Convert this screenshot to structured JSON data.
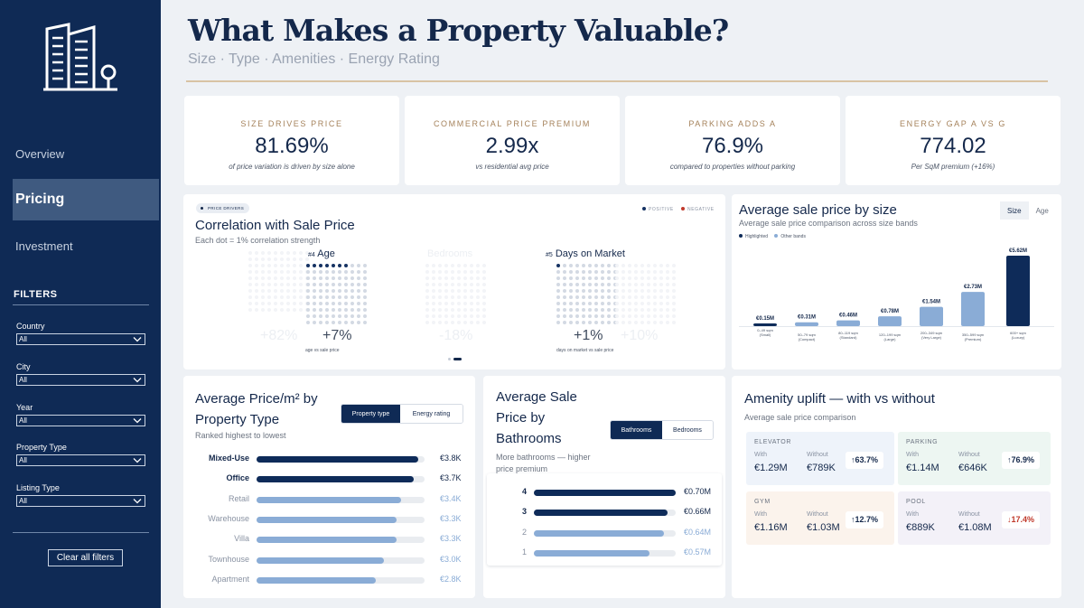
{
  "sidebar": {
    "nav": [
      "Overview",
      "Pricing",
      "Investment"
    ],
    "active": "Pricing",
    "filters_title": "FILTERS",
    "filters": [
      {
        "label": "Country",
        "value": "All"
      },
      {
        "label": "City",
        "value": "All"
      },
      {
        "label": "Year",
        "value": "All"
      },
      {
        "label": "Property Type",
        "value": "All"
      },
      {
        "label": "Listing Type",
        "value": "All"
      }
    ],
    "clear_label": "Clear all filters"
  },
  "header": {
    "title": "What Makes a Property Valuable?",
    "subtitle": "Size · Type · Amenities · Energy Rating"
  },
  "kpis": [
    {
      "label": "SIZE DRIVES PRICE",
      "value": "81.69%",
      "caption": "of price variation is driven by size alone"
    },
    {
      "label": "COMMERCIAL PRICE PREMIUM",
      "value": "2.99x",
      "caption": "vs residential avg price"
    },
    {
      "label": "PARKING ADDS A",
      "value": "76.9%",
      "caption": "compared to properties without parking"
    },
    {
      "label": "ENERGY GAP A VS G",
      "value": "774.02",
      "caption": "Per SqM premium (+16%)"
    }
  ],
  "correlation": {
    "badge": "PRICE DRIVERS",
    "title": "Correlation with Sale Price",
    "subtitle": "Each dot = 1% correlation strength",
    "legend_positive": "POSITIVE",
    "legend_negative": "NEGATIVE",
    "colors": {
      "positive": "#153262",
      "negative": "#c0392b"
    },
    "items": [
      {
        "rank": "",
        "name": "",
        "value": "+82%",
        "caption": "",
        "dots": 82,
        "faint": true
      },
      {
        "rank": "#4",
        "name": "Age",
        "value": "+7%",
        "caption": "age vs sale price",
        "dots": 7,
        "faint": false
      },
      {
        "rank": "",
        "name": "Bedrooms",
        "value": "-18%",
        "caption": "",
        "dots": 18,
        "faint": true
      },
      {
        "rank": "#5",
        "name": "Days on Market",
        "value": "+1%",
        "caption": "days on market vs sale price",
        "dots": 1,
        "faint": false
      },
      {
        "rank": "",
        "name": "",
        "value": "+10%",
        "caption": "",
        "dots": 10,
        "faint": true
      }
    ]
  },
  "size_card": {
    "title": "Average sale price by size",
    "subtitle": "Average sale price comparison across size bands",
    "tabs": [
      "Size",
      "Age"
    ],
    "active_tab": "Size",
    "legend": [
      "Highlighted",
      "Other bands"
    ]
  },
  "chart_data": {
    "type": "bar",
    "unit": "€M",
    "categories": [
      "0–49 sqm (Small)",
      "50–79 sqm (Compact)",
      "80–119 sqm (Standard)",
      "120–199 sqm (Large)",
      "200–349 sqm (Very Large)",
      "350–599 sqm (Premium)",
      "600+ sqm (Luxury)"
    ],
    "values": [
      0.15,
      0.31,
      0.46,
      0.78,
      1.54,
      2.73,
      5.62
    ],
    "labels": [
      "€0.15M",
      "€0.31M",
      "€0.46M",
      "€0.78M",
      "€1.54M",
      "€2.73M",
      "€5.62M"
    ],
    "highlighted": [
      true,
      false,
      false,
      false,
      false,
      false,
      true
    ],
    "legend_position": "top-left",
    "colors": {
      "highlight": "#0e2b59",
      "other": "#8aacd6"
    }
  },
  "price_type": {
    "title_line1": "Average Price/m² by",
    "title_line2": "Property Type",
    "subtitle": "Ranked highest to lowest",
    "toggle": [
      "Property type",
      "Energy rating"
    ],
    "active": "Property type",
    "rows": [
      {
        "label": "Mixed-Use",
        "value": "€3.8K",
        "num": 3.8,
        "hl": true
      },
      {
        "label": "Office",
        "value": "€3.7K",
        "num": 3.7,
        "hl": true
      },
      {
        "label": "Retail",
        "value": "€3.4K",
        "num": 3.4,
        "hl": false
      },
      {
        "label": "Warehouse",
        "value": "€3.3K",
        "num": 3.3,
        "hl": false
      },
      {
        "label": "Villa",
        "value": "€3.3K",
        "num": 3.3,
        "hl": false
      },
      {
        "label": "Townhouse",
        "value": "€3.0K",
        "num": 3.0,
        "hl": false
      },
      {
        "label": "Apartment",
        "value": "€2.8K",
        "num": 2.8,
        "hl": false
      }
    ],
    "scale_max": 3.95
  },
  "baths": {
    "title_lines": [
      "Average Sale",
      "Price by",
      "Bathrooms"
    ],
    "subtitle_lines": [
      "More bathrooms — higher",
      "price premium"
    ],
    "toggle": [
      "Bathrooms",
      "Bedrooms"
    ],
    "active": "Bathrooms",
    "rows": [
      {
        "label": "4",
        "value": "€0.70M",
        "num": 0.7,
        "hl": true
      },
      {
        "label": "3",
        "value": "€0.66M",
        "num": 0.66,
        "hl": true
      },
      {
        "label": "2",
        "value": "€0.64M",
        "num": 0.64,
        "hl": false
      },
      {
        "label": "1",
        "value": "€0.57M",
        "num": 0.57,
        "hl": false
      }
    ],
    "scale_max": 0.7
  },
  "amenity": {
    "title": "Amenity uplift — with vs without",
    "subtitle": "Average sale price comparison",
    "with_label": "With",
    "without_label": "Without",
    "items": [
      {
        "name": "ELEVATOR",
        "with": "€1.29M",
        "without": "€789K",
        "uplift": "↑63.7%",
        "bg": "#eef3fa",
        "color": "#14284b"
      },
      {
        "name": "PARKING",
        "with": "€1.14M",
        "without": "€646K",
        "uplift": "↑76.9%",
        "bg": "#edf6f2",
        "color": "#14284b"
      },
      {
        "name": "GYM",
        "with": "€1.16M",
        "without": "€1.03M",
        "uplift": "↑12.7%",
        "bg": "#fbf3ec",
        "color": "#14284b"
      },
      {
        "name": "POOL",
        "with": "€889K",
        "without": "€1.08M",
        "uplift": "↓17.4%",
        "bg": "#f3f1f8",
        "color": "#c0392b"
      }
    ]
  }
}
